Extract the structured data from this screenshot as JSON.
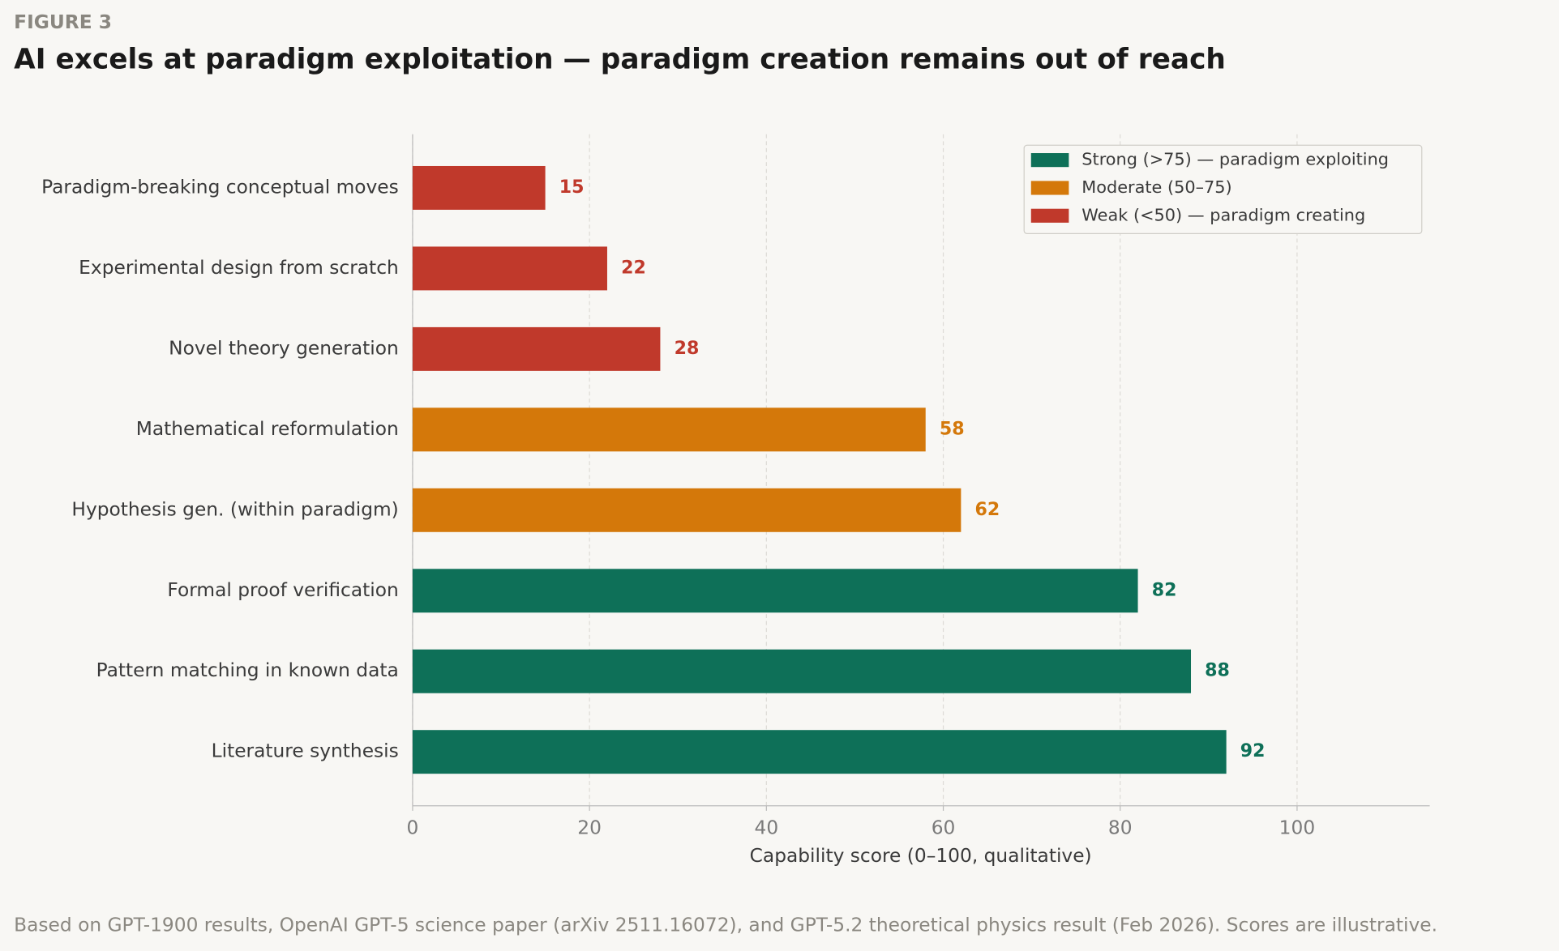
{
  "chart_data": {
    "type": "bar",
    "orientation": "horizontal",
    "figure_label": "FIGURE 3",
    "title": "AI excels at paradigm exploitation — paradigm creation remains out of reach",
    "x_label": "Capability score (0–100, qualitative)",
    "footnote": "Based on GPT-1900 results, OpenAI GPT-5 science paper (arXiv 2511.16072), and GPT-5.2 theoretical physics result (Feb 2026). Scores are illustrative.",
    "categories": [
      "Paradigm-breaking conceptual moves",
      "Experimental design from scratch",
      "Novel theory generation",
      "Mathematical reformulation",
      "Hypothesis gen. (within paradigm)",
      "Formal proof verification",
      "Pattern matching in known data",
      "Literature synthesis"
    ],
    "values": [
      15,
      22,
      28,
      58,
      62,
      82,
      88,
      92
    ],
    "colors": [
      "#c0392b",
      "#c0392b",
      "#c0392b",
      "#d4780a",
      "#d4780a",
      "#0e7058",
      "#0e7058",
      "#0e7058"
    ],
    "legend": [
      {
        "label": "Strong (>75) — paradigm exploiting",
        "color": "#0e7058"
      },
      {
        "label": "Moderate (50–75)",
        "color": "#d4780a"
      },
      {
        "label": "Weak (<50) — paradigm creating",
        "color": "#c0392b"
      }
    ],
    "legend_position": "upper right",
    "xlim": [
      0,
      115
    ],
    "xticks": [
      0,
      20,
      40,
      60,
      80,
      100
    ],
    "grid": true
  }
}
